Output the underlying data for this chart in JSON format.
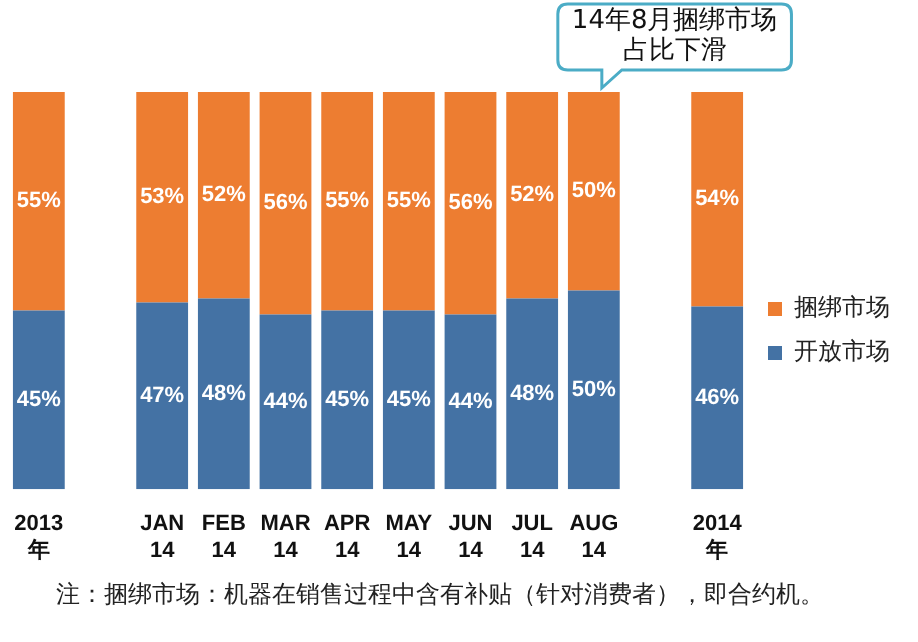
{
  "chart_data": {
    "type": "bar",
    "stacked": true,
    "legend": "right",
    "tick_labels": "x",
    "categories": [
      "2013\n年",
      null,
      "JAN\n14",
      "FEB\n14",
      "MAR\n14",
      "APR\n14",
      "MAY\n14",
      "JUN\n14",
      "JUL\n14",
      "AUG\n14",
      null,
      "2014\n年"
    ],
    "series": [
      {
        "name": "开放市场",
        "color": "#4472a4",
        "values": [
          45,
          null,
          47,
          48,
          44,
          45,
          45,
          44,
          48,
          50,
          null,
          46
        ],
        "value_labels": [
          "45%",
          null,
          "47%",
          "48%",
          "44%",
          "45%",
          "45%",
          "44%",
          "48%",
          "50%",
          null,
          "46%"
        ]
      },
      {
        "name": "捆绑市场",
        "color": "#ed7d31",
        "values": [
          55,
          null,
          53,
          52,
          56,
          55,
          55,
          56,
          52,
          50,
          null,
          54
        ],
        "value_labels": [
          "55%",
          null,
          "53%",
          "52%",
          "56%",
          "55%",
          "55%",
          "56%",
          "52%",
          "50%",
          null,
          "54%"
        ]
      }
    ],
    "annotations": [
      {
        "text": "14年8月捆绑市场占比下滑",
        "x": "AUG\n14",
        "y": 100
      },
      "注：捆绑市场：机器在销售过程中含有补贴（针对消费者），即合约机。"
    ]
  }
}
